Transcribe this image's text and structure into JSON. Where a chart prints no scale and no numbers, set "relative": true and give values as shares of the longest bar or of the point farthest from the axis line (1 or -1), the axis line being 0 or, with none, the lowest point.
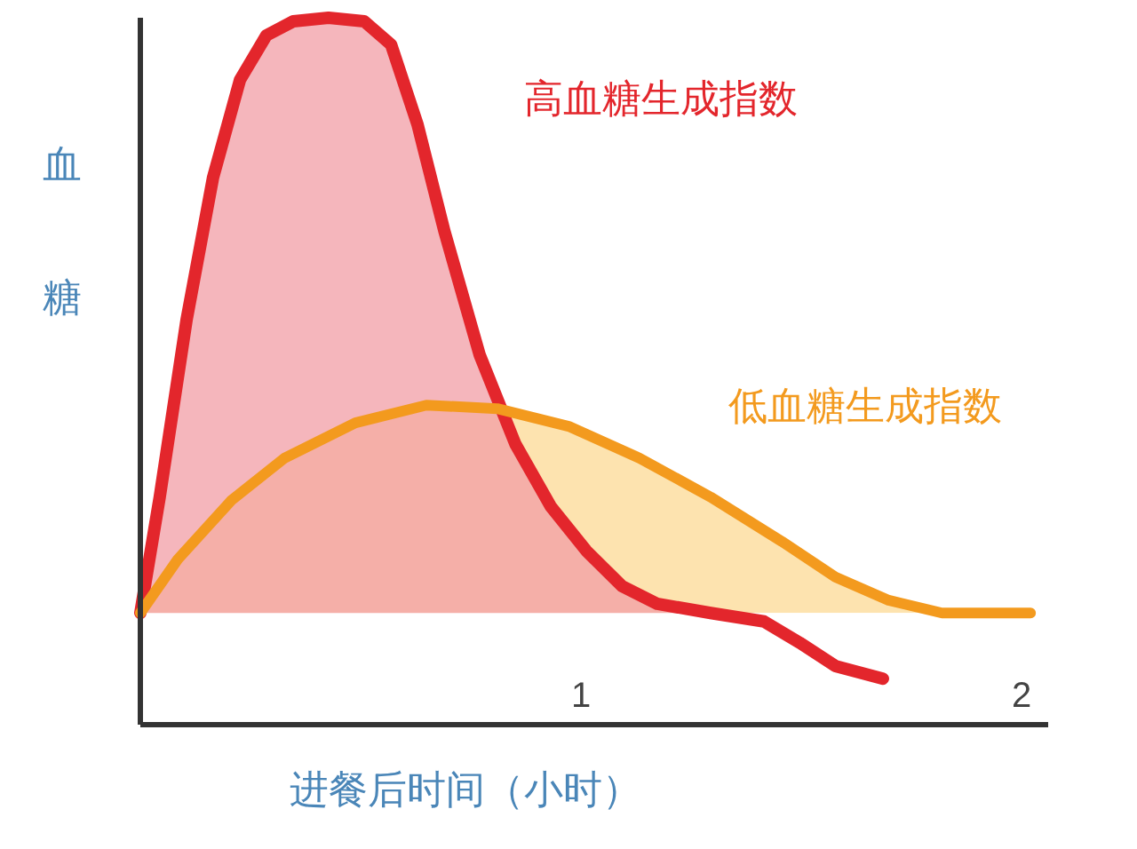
{
  "chart_data": {
    "type": "area",
    "relative": true,
    "xlabel": "进餐后时间（小时）",
    "ylabel": "血糖",
    "xlim": [
      0,
      2.06
    ],
    "xticks": [
      1,
      2
    ],
    "series": [
      {
        "name": "高血糖生成指数",
        "color": "#e3262c",
        "x": [
          0,
          0.044,
          0.105,
          0.165,
          0.226,
          0.286,
          0.347,
          0.427,
          0.508,
          0.569,
          0.629,
          0.69,
          0.77,
          0.851,
          0.931,
          1.012,
          1.093,
          1.173,
          1.294,
          1.415,
          1.496,
          1.577,
          1.685
        ],
        "values": [
          0.158,
          0.322,
          0.573,
          0.774,
          0.912,
          0.975,
          0.995,
          1.0,
          0.995,
          0.962,
          0.849,
          0.698,
          0.523,
          0.397,
          0.309,
          0.246,
          0.196,
          0.171,
          0.158,
          0.146,
          0.116,
          0.083,
          0.065
        ]
      },
      {
        "name": "低血糖生成指数",
        "color": "#f39a1e",
        "x": [
          0,
          0.085,
          0.206,
          0.327,
          0.488,
          0.649,
          0.81,
          0.972,
          1.133,
          1.294,
          1.456,
          1.577,
          1.698,
          1.819,
          2.02
        ],
        "values": [
          0.158,
          0.234,
          0.317,
          0.377,
          0.427,
          0.452,
          0.447,
          0.422,
          0.377,
          0.322,
          0.259,
          0.209,
          0.176,
          0.158,
          0.158
        ]
      }
    ]
  }
}
